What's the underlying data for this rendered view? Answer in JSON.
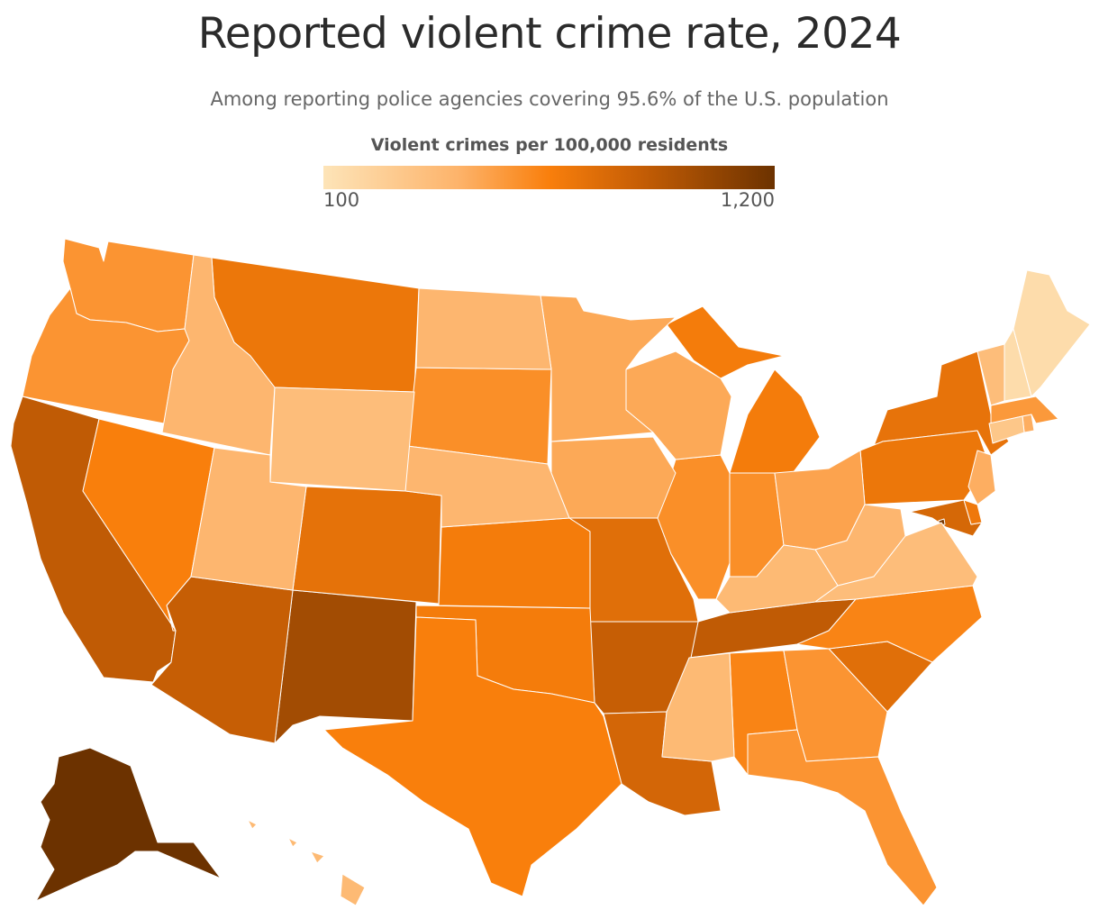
{
  "title": "Reported violent crime rate, 2024",
  "subtitle": "Among reporting police agencies covering 95.6% of the U.S. population",
  "legend": {
    "title": "Violent crimes per 100,000 residents",
    "min_label": "100",
    "max_label": "1,200",
    "min": 100,
    "max": 1200,
    "colors": [
      "#fde4b8",
      "#fdb36a",
      "#f97f0c",
      "#c65e05",
      "#6c3200"
    ]
  },
  "map_data": {
    "type": "choropleth",
    "region": "United States",
    "states": [
      {
        "state": "Alaska",
        "level": 1.0
      },
      {
        "state": "New Mexico",
        "level": 0.82
      },
      {
        "state": "California",
        "level": 0.72
      },
      {
        "state": "Tennessee",
        "level": 0.72
      },
      {
        "state": "Arizona",
        "level": 0.7
      },
      {
        "state": "Arkansas",
        "level": 0.7
      },
      {
        "state": "Louisiana",
        "level": 0.65
      },
      {
        "state": "Maryland",
        "level": 0.64
      },
      {
        "state": "District of Columbia",
        "level": 0.95
      },
      {
        "state": "South Carolina",
        "level": 0.6
      },
      {
        "state": "Missouri",
        "level": 0.6
      },
      {
        "state": "Colorado",
        "level": 0.58
      },
      {
        "state": "New York",
        "level": 0.57
      },
      {
        "state": "Montana",
        "level": 0.55
      },
      {
        "state": "Pennsylvania",
        "level": 0.55
      },
      {
        "state": "Delaware",
        "level": 0.54
      },
      {
        "state": "Kansas",
        "level": 0.52
      },
      {
        "state": "Oklahoma",
        "level": 0.52
      },
      {
        "state": "Michigan",
        "level": 0.52
      },
      {
        "state": "Texas",
        "level": 0.5
      },
      {
        "state": "Nevada",
        "level": 0.5
      },
      {
        "state": "North Carolina",
        "level": 0.48
      },
      {
        "state": "Alabama",
        "level": 0.48
      },
      {
        "state": "Illinois",
        "level": 0.44
      },
      {
        "state": "Indiana",
        "level": 0.44
      },
      {
        "state": "South Dakota",
        "level": 0.44
      },
      {
        "state": "Washington",
        "level": 0.42
      },
      {
        "state": "Oregon",
        "level": 0.42
      },
      {
        "state": "Georgia",
        "level": 0.42
      },
      {
        "state": "Florida",
        "level": 0.42
      },
      {
        "state": "Massachusetts",
        "level": 0.4
      },
      {
        "state": "Ohio",
        "level": 0.36
      },
      {
        "state": "Wisconsin",
        "level": 0.34
      },
      {
        "state": "Iowa",
        "level": 0.34
      },
      {
        "state": "Minnesota",
        "level": 0.34
      },
      {
        "state": "New Jersey",
        "level": 0.32
      },
      {
        "state": "Rhode Island",
        "level": 0.32
      },
      {
        "state": "Idaho",
        "level": 0.28
      },
      {
        "state": "Utah",
        "level": 0.28
      },
      {
        "state": "North Dakota",
        "level": 0.28
      },
      {
        "state": "Nebraska",
        "level": 0.28
      },
      {
        "state": "West Virginia",
        "level": 0.28
      },
      {
        "state": "Kentucky",
        "level": 0.26
      },
      {
        "state": "Hawaii",
        "level": 0.26
      },
      {
        "state": "Mississippi",
        "level": 0.26
      },
      {
        "state": "Vermont",
        "level": 0.24
      },
      {
        "state": "Wyoming",
        "level": 0.24
      },
      {
        "state": "Virginia",
        "level": 0.24
      },
      {
        "state": "Connecticut",
        "level": 0.18
      },
      {
        "state": "New Hampshire",
        "level": 0.05
      },
      {
        "state": "Maine",
        "level": 0.05
      }
    ]
  }
}
